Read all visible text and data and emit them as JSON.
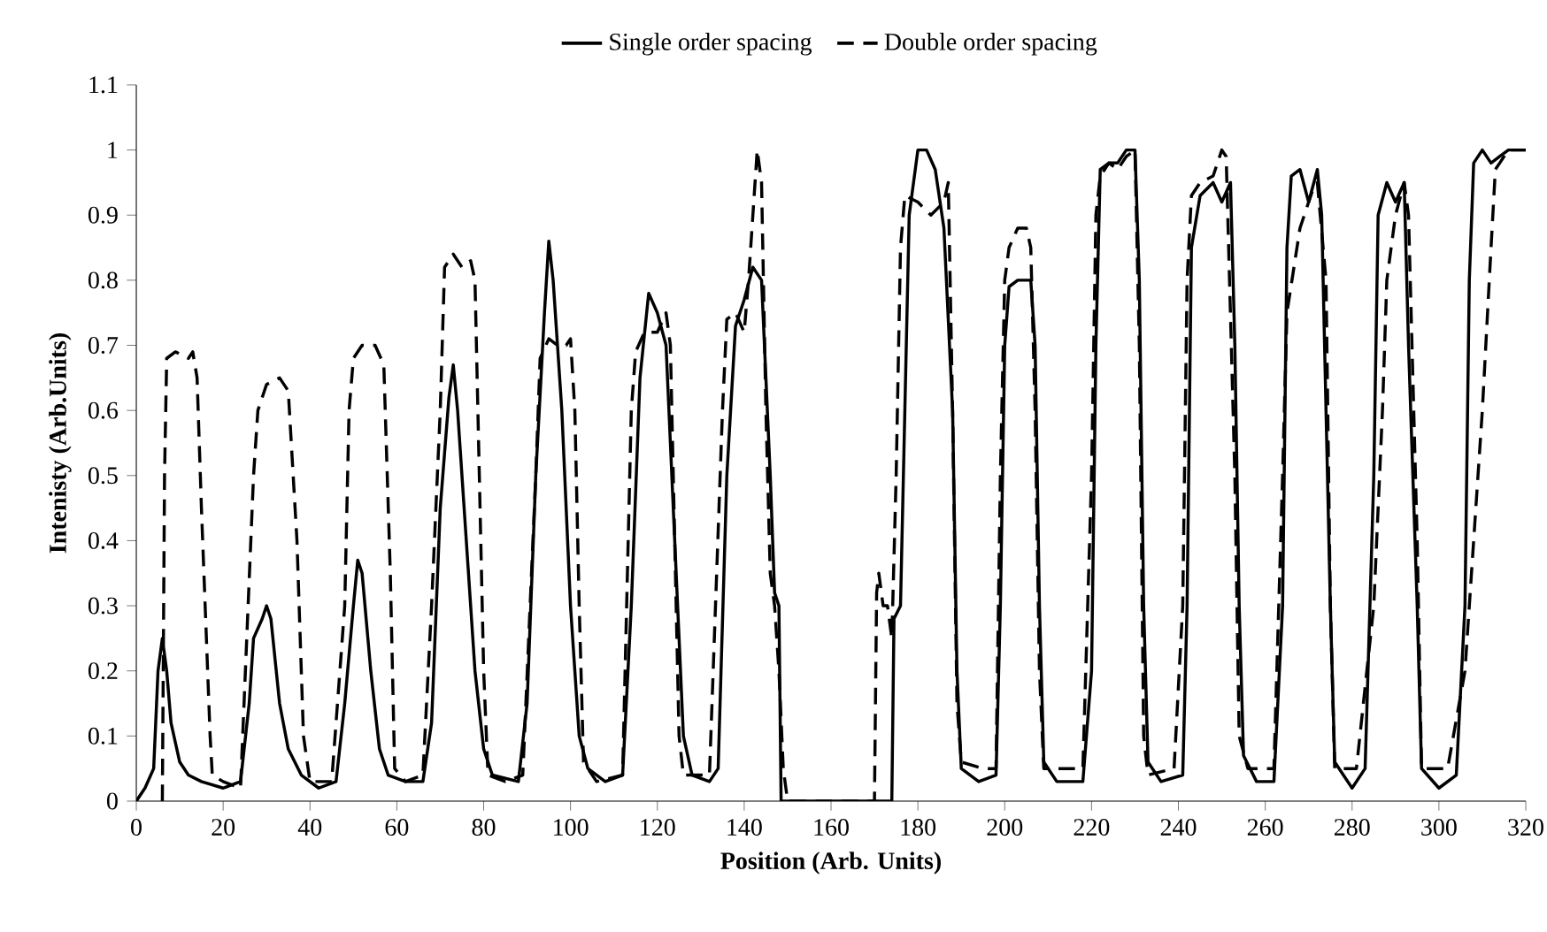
{
  "chart_data": {
    "type": "line",
    "xlabel": "Position (Arb. Units)",
    "ylabel": "Intenisty (Arb.Units)",
    "xlim": [
      0,
      320
    ],
    "xticks": [
      0,
      20,
      40,
      60,
      80,
      100,
      120,
      140,
      160,
      180,
      200,
      220,
      240,
      260,
      280,
      300,
      320
    ],
    "ylim": [
      0,
      1.1
    ],
    "yticks": [
      0,
      0.1,
      0.2,
      0.3,
      0.4,
      0.5,
      0.6,
      0.7,
      0.8,
      0.9,
      1,
      1.1
    ],
    "grid": false,
    "legend": "top",
    "marker": "none",
    "series": [
      {
        "name": "Single order spacing",
        "color": "#000000",
        "line_style": "solid",
        "x": [
          0,
          2,
          4,
          5,
          6,
          7,
          8,
          10,
          12,
          15,
          20,
          24,
          26,
          27,
          29,
          30,
          31,
          33,
          35,
          38,
          42,
          46,
          48,
          50,
          51,
          52,
          54,
          56,
          58,
          62,
          66,
          68,
          70,
          72,
          73,
          74,
          76,
          78,
          80,
          82,
          88,
          90,
          92,
          94,
          95,
          96,
          98,
          100,
          102,
          104,
          108,
          112,
          114,
          116,
          118,
          120,
          122,
          124,
          126,
          128,
          132,
          134,
          136,
          138,
          140,
          142,
          144,
          146,
          147,
          148,
          148.5,
          160,
          174,
          174.5,
          176,
          177,
          178,
          180,
          182,
          184,
          186,
          188,
          189,
          190,
          194,
          198,
          199,
          200,
          201,
          203,
          206,
          207,
          208,
          209,
          212,
          218,
          220,
          221,
          222,
          224,
          226,
          228,
          230,
          231,
          232,
          233,
          236,
          241,
          242,
          243,
          245,
          248,
          250,
          252,
          253,
          254,
          255,
          258,
          262,
          264,
          265,
          266,
          268,
          270,
          272,
          273,
          275,
          276,
          280,
          283,
          285,
          286,
          288,
          290,
          292,
          293,
          295,
          296,
          300,
          304,
          306,
          307,
          308,
          310,
          312,
          314,
          316,
          320
        ],
        "values": [
          0,
          0.02,
          0.05,
          0.2,
          0.25,
          0.2,
          0.12,
          0.06,
          0.04,
          0.03,
          0.02,
          0.03,
          0.15,
          0.25,
          0.28,
          0.3,
          0.28,
          0.15,
          0.08,
          0.04,
          0.02,
          0.03,
          0.15,
          0.3,
          0.37,
          0.35,
          0.2,
          0.08,
          0.04,
          0.03,
          0.03,
          0.12,
          0.45,
          0.62,
          0.67,
          0.6,
          0.4,
          0.2,
          0.08,
          0.04,
          0.03,
          0.15,
          0.5,
          0.75,
          0.86,
          0.8,
          0.6,
          0.3,
          0.1,
          0.05,
          0.03,
          0.04,
          0.3,
          0.65,
          0.78,
          0.75,
          0.7,
          0.4,
          0.1,
          0.04,
          0.03,
          0.05,
          0.5,
          0.73,
          0.77,
          0.82,
          0.8,
          0.5,
          0.32,
          0.3,
          0,
          0,
          0,
          0.28,
          0.3,
          0.6,
          0.9,
          1.0,
          1.0,
          0.97,
          0.88,
          0.6,
          0.2,
          0.05,
          0.03,
          0.04,
          0.3,
          0.7,
          0.79,
          0.8,
          0.8,
          0.7,
          0.3,
          0.06,
          0.03,
          0.03,
          0.2,
          0.7,
          0.97,
          0.98,
          0.98,
          1.0,
          1.0,
          0.8,
          0.3,
          0.06,
          0.03,
          0.04,
          0.3,
          0.85,
          0.93,
          0.95,
          0.92,
          0.95,
          0.7,
          0.3,
          0.07,
          0.03,
          0.03,
          0.3,
          0.85,
          0.96,
          0.97,
          0.92,
          0.97,
          0.9,
          0.3,
          0.06,
          0.02,
          0.05,
          0.5,
          0.9,
          0.95,
          0.92,
          0.95,
          0.7,
          0.3,
          0.05,
          0.02,
          0.04,
          0.3,
          0.8,
          0.98,
          1.0,
          0.98,
          0.99,
          1.0,
          1.0
        ]
      },
      {
        "name": "Double order spacing",
        "color": "#000000",
        "line_style": "dashed",
        "x": [
          6,
          6.5,
          7,
          9,
          12,
          13,
          14,
          15,
          17,
          17.5,
          20,
          24,
          27,
          28,
          30,
          33,
          35,
          37,
          38.5,
          40,
          45,
          48,
          49,
          50,
          52,
          55,
          57,
          58.5,
          59.5,
          62,
          66,
          68,
          70,
          71,
          73,
          75,
          77,
          78,
          79,
          80,
          81,
          85,
          89,
          92,
          93,
          95,
          97,
          99,
          100,
          101,
          102,
          103,
          106,
          112,
          114,
          115,
          117,
          120,
          122,
          123,
          124,
          125,
          126,
          132,
          135,
          136,
          138,
          140,
          141,
          143,
          144,
          145,
          146,
          147,
          148,
          149,
          150,
          170,
          170.5,
          171,
          172,
          173,
          174,
          175,
          176,
          177,
          180,
          183,
          186,
          187,
          188,
          189,
          190,
          195,
          198,
          199,
          200,
          201,
          203,
          205,
          206,
          207,
          208,
          209,
          214,
          218,
          220,
          221,
          222,
          224,
          226,
          228,
          230,
          231,
          232,
          233,
          239,
          241,
          242,
          243,
          245,
          248,
          250,
          251,
          253,
          254,
          256,
          262,
          264,
          265,
          268,
          271,
          272,
          274,
          275,
          276,
          281,
          285,
          287,
          288,
          290,
          292,
          293,
          295,
          296,
          302,
          306,
          308,
          310,
          312,
          313,
          314,
          316,
          320
        ],
        "values": [
          0,
          0.5,
          0.68,
          0.69,
          0.68,
          0.69,
          0.65,
          0.45,
          0.1,
          0.04,
          0.03,
          0.02,
          0.5,
          0.6,
          0.64,
          0.65,
          0.63,
          0.4,
          0.1,
          0.03,
          0.03,
          0.3,
          0.6,
          0.68,
          0.7,
          0.7,
          0.67,
          0.35,
          0.05,
          0.03,
          0.04,
          0.3,
          0.6,
          0.82,
          0.84,
          0.82,
          0.83,
          0.8,
          0.5,
          0.2,
          0.04,
          0.03,
          0.04,
          0.5,
          0.68,
          0.71,
          0.7,
          0.7,
          0.71,
          0.6,
          0.3,
          0.06,
          0.03,
          0.04,
          0.6,
          0.69,
          0.72,
          0.72,
          0.75,
          0.7,
          0.4,
          0.1,
          0.04,
          0.04,
          0.6,
          0.74,
          0.75,
          0.72,
          0.8,
          1.0,
          0.95,
          0.6,
          0.35,
          0.3,
          0.2,
          0.05,
          0,
          0,
          0.32,
          0.35,
          0.3,
          0.3,
          0.25,
          0.5,
          0.85,
          0.93,
          0.92,
          0.9,
          0.92,
          0.95,
          0.6,
          0.15,
          0.06,
          0.05,
          0.05,
          0.5,
          0.8,
          0.85,
          0.88,
          0.88,
          0.85,
          0.6,
          0.2,
          0.05,
          0.05,
          0.05,
          0.5,
          0.9,
          0.96,
          0.98,
          0.97,
          0.99,
          1.0,
          0.7,
          0.1,
          0.04,
          0.05,
          0.3,
          0.8,
          0.93,
          0.95,
          0.96,
          1.0,
          0.99,
          0.5,
          0.1,
          0.05,
          0.05,
          0.5,
          0.75,
          0.88,
          0.94,
          0.95,
          0.8,
          0.3,
          0.05,
          0.05,
          0.3,
          0.6,
          0.8,
          0.9,
          0.95,
          0.9,
          0.4,
          0.05,
          0.05,
          0.2,
          0.4,
          0.6,
          0.85,
          0.97,
          0.98,
          1.0,
          1.0
        ]
      }
    ]
  }
}
